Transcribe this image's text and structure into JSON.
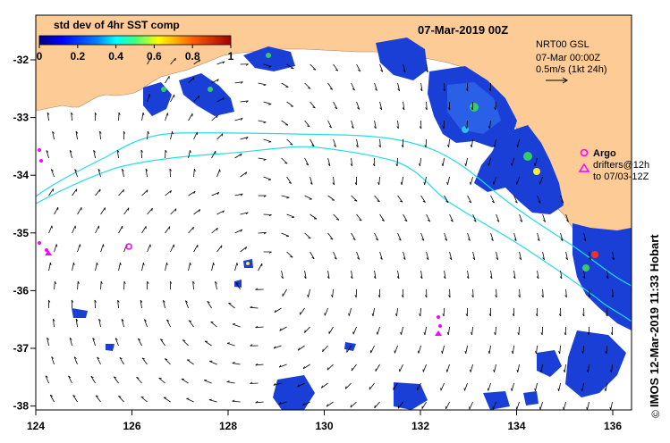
{
  "title": "07-Mar-2019 00Z",
  "colorbar": {
    "label": "std dev of 4hr SST comp",
    "ticks": [
      "0",
      "0.2",
      "0.4",
      "0.6",
      "0.8",
      "1"
    ]
  },
  "info": {
    "line1": "NRT00 GSL",
    "line2": "07-Mar 00:00Z",
    "line3": "0.5m/s (1kt 24h)"
  },
  "legend": {
    "argo": "Argo",
    "drifters_line1": "drifters@12h",
    "drifters_line2": "to 07/03-12Z"
  },
  "credit": "IMOS 12-Mar-2019 11:33 Hobart",
  "copyright": "©",
  "x_ticks": [
    "124",
    "126",
    "128",
    "130",
    "132",
    "134",
    "136"
  ],
  "y_ticks": [
    "-32",
    "-33",
    "-34",
    "-35",
    "-36",
    "-37",
    "-38"
  ],
  "colors": {
    "land": "#fdcb95",
    "sea": "#ffffff",
    "contour": "#22dde8",
    "argo": "#ff00ff",
    "text": "#000000"
  }
}
